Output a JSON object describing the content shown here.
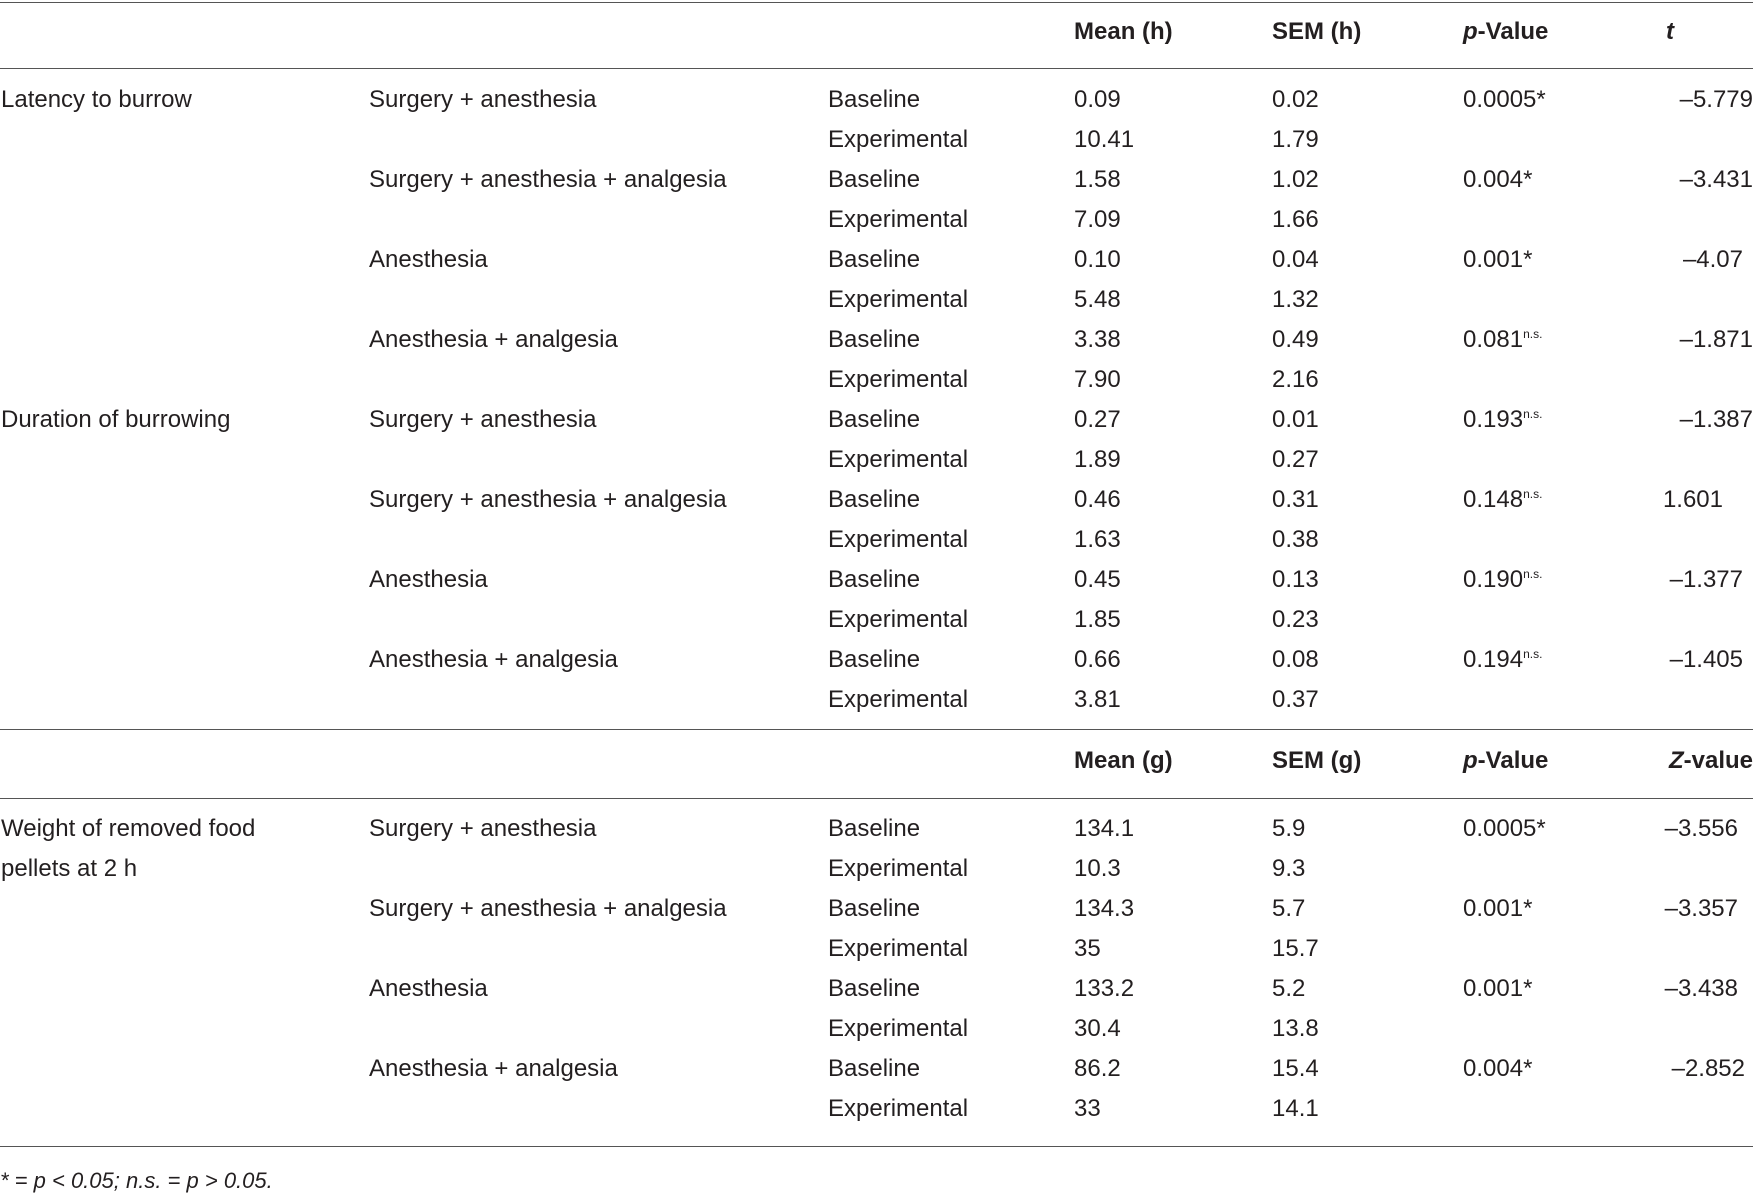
{
  "header1": {
    "mean": "Mean (h)",
    "sem": "SEM (h)",
    "p_label_italic": "p",
    "p_label_rest": "-Value",
    "stat": "t"
  },
  "header2": {
    "mean": "Mean (g)",
    "sem": "SEM (g)",
    "p_label_italic": "p",
    "p_label_rest": "-Value",
    "stat_italic": "Z",
    "stat_rest": "-value"
  },
  "rows": [
    {
      "measure": "Latency to burrow",
      "group": "Surgery + anesthesia",
      "phase": "Baseline",
      "mean": "0.09",
      "sem": "0.02",
      "p": "0.0005",
      "sig": "*",
      "stat": "–5.779"
    },
    {
      "measure": "",
      "group": "",
      "phase": "Experimental",
      "mean": "10.41",
      "sem": "1.79",
      "p": "",
      "sig": "",
      "stat": ""
    },
    {
      "measure": "",
      "group": "Surgery + anesthesia + analgesia",
      "phase": "Baseline",
      "mean": "1.58",
      "sem": "1.02",
      "p": "0.004",
      "sig": "*",
      "stat": "–3.431"
    },
    {
      "measure": "",
      "group": "",
      "phase": "Experimental",
      "mean": "7.09",
      "sem": "1.66",
      "p": "",
      "sig": "",
      "stat": ""
    },
    {
      "measure": "",
      "group": "Anesthesia",
      "phase": "Baseline",
      "mean": "0.10",
      "sem": "0.04",
      "p": "0.001",
      "sig": "*",
      "stat": "–4.07"
    },
    {
      "measure": "",
      "group": "",
      "phase": "Experimental",
      "mean": "5.48",
      "sem": "1.32",
      "p": "",
      "sig": "",
      "stat": ""
    },
    {
      "measure": "",
      "group": "Anesthesia + analgesia",
      "phase": "Baseline",
      "mean": "3.38",
      "sem": "0.49",
      "p": "0.081",
      "sig": "n.s.",
      "stat": "–1.871"
    },
    {
      "measure": "",
      "group": "",
      "phase": "Experimental",
      "mean": "7.90",
      "sem": "2.16",
      "p": "",
      "sig": "",
      "stat": ""
    },
    {
      "measure": "Duration of burrowing",
      "group": "Surgery + anesthesia",
      "phase": "Baseline",
      "mean": "0.27",
      "sem": "0.01",
      "p": "0.193",
      "sig": "n.s.",
      "stat": "–1.387"
    },
    {
      "measure": "",
      "group": "",
      "phase": "Experimental",
      "mean": "1.89",
      "sem": "0.27",
      "p": "",
      "sig": "",
      "stat": ""
    },
    {
      "measure": "",
      "group": "Surgery + anesthesia + analgesia",
      "phase": "Baseline",
      "mean": "0.46",
      "sem": "0.31",
      "p": "0.148",
      "sig": "n.s.",
      "stat": "1.601"
    },
    {
      "measure": "",
      "group": "",
      "phase": "Experimental",
      "mean": "1.63",
      "sem": "0.38",
      "p": "",
      "sig": "",
      "stat": ""
    },
    {
      "measure": "",
      "group": "Anesthesia",
      "phase": "Baseline",
      "mean": "0.45",
      "sem": "0.13",
      "p": "0.190",
      "sig": "n.s.",
      "stat": "–1.377"
    },
    {
      "measure": "",
      "group": "",
      "phase": "Experimental",
      "mean": "1.85",
      "sem": "0.23",
      "p": "",
      "sig": "",
      "stat": ""
    },
    {
      "measure": "",
      "group": "Anesthesia + analgesia",
      "phase": "Baseline",
      "mean": "0.66",
      "sem": "0.08",
      "p": "0.194",
      "sig": "n.s.",
      "stat": "–1.405"
    },
    {
      "measure": "",
      "group": "",
      "phase": "Experimental",
      "mean": "3.81",
      "sem": "0.37",
      "p": "",
      "sig": "",
      "stat": ""
    },
    {
      "measure": "Weight of removed food",
      "group": "Surgery + anesthesia",
      "phase": "Baseline",
      "mean": "134.1",
      "sem": "5.9",
      "p": "0.0005",
      "sig": "*",
      "stat": "–3.556"
    },
    {
      "measure": "pellets at 2 h",
      "group": "",
      "phase": "Experimental",
      "mean": "10.3",
      "sem": "9.3",
      "p": "",
      "sig": "",
      "stat": ""
    },
    {
      "measure": "",
      "group": "Surgery + anesthesia + analgesia",
      "phase": "Baseline",
      "mean": "134.3",
      "sem": "5.7",
      "p": "0.001",
      "sig": "*",
      "stat": "–3.357"
    },
    {
      "measure": "",
      "group": "",
      "phase": "Experimental",
      "mean": "35",
      "sem": "15.7",
      "p": "",
      "sig": "",
      "stat": ""
    },
    {
      "measure": "",
      "group": "Anesthesia",
      "phase": "Baseline",
      "mean": "133.2",
      "sem": "5.2",
      "p": "0.001",
      "sig": "*",
      "stat": "–3.438"
    },
    {
      "measure": "",
      "group": "",
      "phase": "Experimental",
      "mean": "30.4",
      "sem": "13.8",
      "p": "",
      "sig": "",
      "stat": ""
    },
    {
      "measure": "",
      "group": "Anesthesia + analgesia",
      "phase": "Baseline",
      "mean": "86.2",
      "sem": "15.4",
      "p": "0.004",
      "sig": "*",
      "stat": "–2.852"
    },
    {
      "measure": "",
      "group": "",
      "phase": "Experimental",
      "mean": "33",
      "sem": "14.1",
      "p": "",
      "sig": "",
      "stat": ""
    }
  ],
  "footnote": "* = p < 0.05; n.s. = p > 0.05."
}
